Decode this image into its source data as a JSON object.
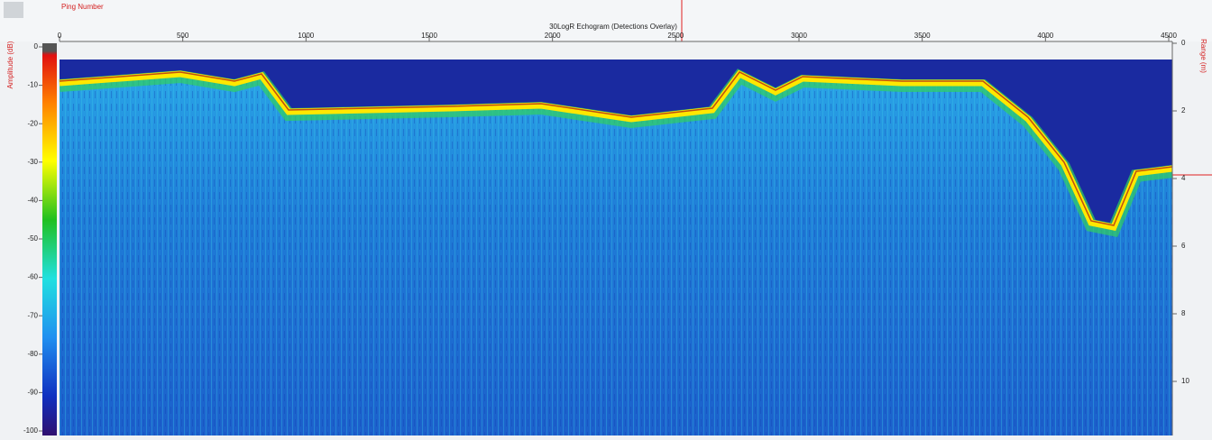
{
  "toolbar": {
    "x_axis_label": "Ping Number"
  },
  "echogram": {
    "title": "30LogR Echogram (Detections Overlay)",
    "x_ticks": [
      0,
      500,
      1000,
      1500,
      2000,
      2500,
      3000,
      3500,
      4000,
      4500
    ],
    "color_scale": {
      "label": "Amplitude (dB)",
      "ticks": [
        0,
        -10,
        -20,
        -30,
        -40,
        -50,
        -60,
        -70,
        -80,
        -90,
        -100
      ]
    },
    "range_axis": {
      "label": "Range (m)",
      "ticks": [
        0,
        2,
        4,
        6,
        8,
        10
      ]
    }
  }
}
